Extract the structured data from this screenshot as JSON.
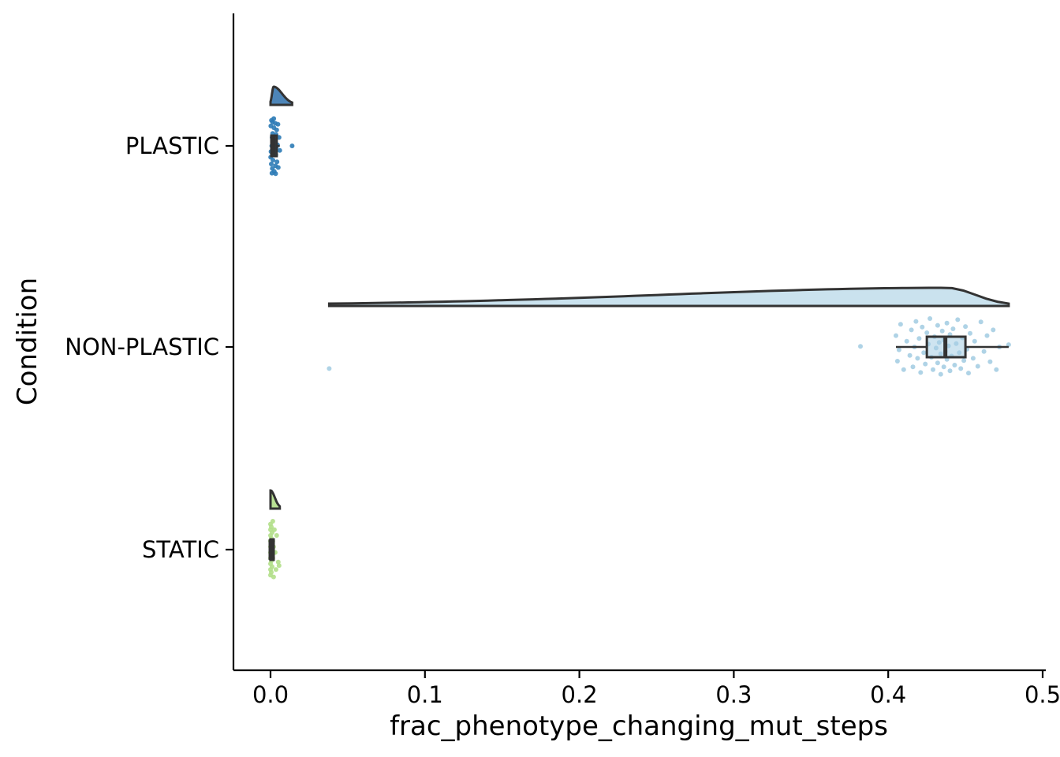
{
  "chart_data": {
    "type": "raincloud",
    "orientation": "horizontal",
    "xlabel": "frac_phenotype_changing_mut_steps",
    "ylabel": "Condition",
    "xlim": [
      -0.024,
      0.502
    ],
    "x_ticks": [
      0.0,
      0.1,
      0.2,
      0.3,
      0.4,
      0.5
    ],
    "x_tick_labels": [
      "0.0",
      "0.1",
      "0.2",
      "0.3",
      "0.4",
      "0.5"
    ],
    "categories": [
      "PLASTIC",
      "NON-PLASTIC",
      "STATIC"
    ],
    "grid": false,
    "legend": "none",
    "series": [
      {
        "category": "PLASTIC",
        "color": "#2c7bb6",
        "fill": "#3a78b0",
        "box": {
          "min": 0.0,
          "q1": 0.0005,
          "median": 0.002,
          "q3": 0.004,
          "max": 0.006
        },
        "violin": {
          "min": 0.0,
          "max": 0.014,
          "mode": 0.002
        },
        "points": [
          {
            "x": 0.0001,
            "j": 0.7
          },
          {
            "x": 0.0003,
            "j": 0.6
          },
          {
            "x": 0.0005,
            "j": 0.82
          },
          {
            "x": 0.0008,
            "j": 0.5
          },
          {
            "x": 0.001,
            "j": 0.35
          },
          {
            "x": 0.0012,
            "j": 0.9
          },
          {
            "x": 0.0014,
            "j": 0.28
          },
          {
            "x": 0.0016,
            "j": 0.75
          },
          {
            "x": 0.0018,
            "j": 0.45
          },
          {
            "x": 0.002,
            "j": 0.62
          },
          {
            "x": 0.0022,
            "j": 0.18
          },
          {
            "x": 0.0024,
            "j": 0.95
          },
          {
            "x": 0.0026,
            "j": 0.4
          },
          {
            "x": 0.0028,
            "j": 0.55
          },
          {
            "x": 0.003,
            "j": 0.1
          },
          {
            "x": 0.0032,
            "j": 0.85
          },
          {
            "x": 0.0034,
            "j": 0.66
          },
          {
            "x": 0.0036,
            "j": 0.3
          },
          {
            "x": 0.0038,
            "j": 0.52
          },
          {
            "x": 0.004,
            "j": 0.22
          },
          {
            "x": 0.0042,
            "j": 0.78
          },
          {
            "x": 0.0045,
            "j": 0.48
          },
          {
            "x": 0.0048,
            "j": 0.12
          },
          {
            "x": 0.005,
            "j": 0.88
          },
          {
            "x": 0.0055,
            "j": 0.35
          },
          {
            "x": 0.006,
            "j": 0.58
          },
          {
            "x": 0.0002,
            "j": 0.15
          },
          {
            "x": 0.0006,
            "j": 0.05
          },
          {
            "x": 0.0009,
            "j": 0.98
          },
          {
            "x": 0.0013,
            "j": 0.08
          },
          {
            "x": 0.0021,
            "j": 0.02
          },
          {
            "x": 0.0033,
            "j": 0.99
          },
          {
            "x": 0.014,
            "j": 0.5
          }
        ]
      },
      {
        "category": "NON-PLASTIC",
        "color": "#a6cee3",
        "fill": "#a6cee3",
        "box": {
          "min": 0.405,
          "q1": 0.425,
          "median": 0.437,
          "q3": 0.45,
          "max": 0.478
        },
        "violin": {
          "min": 0.038,
          "max": 0.478,
          "mode": 0.438
        },
        "points": [
          {
            "x": 0.038,
            "j": 0.88
          },
          {
            "x": 0.382,
            "j": 0.49
          },
          {
            "x": 0.405,
            "j": 0.3
          },
          {
            "x": 0.406,
            "j": 0.75
          },
          {
            "x": 0.407,
            "j": 0.55
          },
          {
            "x": 0.408,
            "j": 0.1
          },
          {
            "x": 0.41,
            "j": 0.9
          },
          {
            "x": 0.412,
            "j": 0.4
          },
          {
            "x": 0.414,
            "j": 0.65
          },
          {
            "x": 0.415,
            "j": 0.2
          },
          {
            "x": 0.416,
            "j": 0.85
          },
          {
            "x": 0.417,
            "j": 0.5
          },
          {
            "x": 0.418,
            "j": 0.05
          },
          {
            "x": 0.419,
            "j": 0.7
          },
          {
            "x": 0.42,
            "j": 0.35
          },
          {
            "x": 0.421,
            "j": 0.95
          },
          {
            "x": 0.422,
            "j": 0.15
          },
          {
            "x": 0.423,
            "j": 0.6
          },
          {
            "x": 0.424,
            "j": 0.8
          },
          {
            "x": 0.425,
            "j": 0.25
          },
          {
            "x": 0.426,
            "j": 0.45
          },
          {
            "x": 0.427,
            "j": 0.0
          },
          {
            "x": 0.428,
            "j": 0.68
          },
          {
            "x": 0.429,
            "j": 0.9
          },
          {
            "x": 0.43,
            "j": 0.32
          },
          {
            "x": 0.431,
            "j": 0.52
          },
          {
            "x": 0.432,
            "j": 0.12
          },
          {
            "x": 0.432,
            "j": 0.78
          },
          {
            "x": 0.433,
            "j": 0.42
          },
          {
            "x": 0.434,
            "j": 0.62
          },
          {
            "x": 0.434,
            "j": 0.98
          },
          {
            "x": 0.435,
            "j": 0.22
          },
          {
            "x": 0.436,
            "j": 0.85
          },
          {
            "x": 0.436,
            "j": 0.38
          },
          {
            "x": 0.437,
            "j": 0.58
          },
          {
            "x": 0.438,
            "j": 0.08
          },
          {
            "x": 0.438,
            "j": 0.72
          },
          {
            "x": 0.439,
            "j": 0.48
          },
          {
            "x": 0.44,
            "j": 0.92
          },
          {
            "x": 0.44,
            "j": 0.28
          },
          {
            "x": 0.441,
            "j": 0.66
          },
          {
            "x": 0.442,
            "j": 0.18
          },
          {
            "x": 0.443,
            "j": 0.82
          },
          {
            "x": 0.444,
            "j": 0.44
          },
          {
            "x": 0.445,
            "j": 0.02
          },
          {
            "x": 0.446,
            "j": 0.6
          },
          {
            "x": 0.447,
            "j": 0.88
          },
          {
            "x": 0.448,
            "j": 0.34
          },
          {
            "x": 0.449,
            "j": 0.74
          },
          {
            "x": 0.45,
            "j": 0.14
          },
          {
            "x": 0.451,
            "j": 0.54
          },
          {
            "x": 0.452,
            "j": 0.96
          },
          {
            "x": 0.453,
            "j": 0.26
          },
          {
            "x": 0.455,
            "j": 0.7
          },
          {
            "x": 0.456,
            "j": 0.4
          },
          {
            "x": 0.458,
            "j": 0.84
          },
          {
            "x": 0.46,
            "j": 0.06
          },
          {
            "x": 0.462,
            "j": 0.58
          },
          {
            "x": 0.464,
            "j": 0.3
          },
          {
            "x": 0.466,
            "j": 0.76
          },
          {
            "x": 0.468,
            "j": 0.2
          },
          {
            "x": 0.47,
            "j": 0.9
          },
          {
            "x": 0.472,
            "j": 0.5
          },
          {
            "x": 0.478,
            "j": 0.46
          }
        ]
      },
      {
        "category": "STATIC",
        "color": "#b2df8a",
        "fill": "#b2df8a",
        "box": {
          "min": 0.0,
          "q1": 0.0,
          "median": 0.0,
          "q3": 0.001,
          "max": 0.002
        },
        "violin": {
          "min": 0.0,
          "max": 0.006,
          "mode": 0.0
        },
        "points": [
          {
            "x": 0.0,
            "j": 0.05
          },
          {
            "x": 0.0,
            "j": 0.15
          },
          {
            "x": 0.0,
            "j": 0.25
          },
          {
            "x": 0.0,
            "j": 0.35
          },
          {
            "x": 0.0,
            "j": 0.45
          },
          {
            "x": 0.0,
            "j": 0.55
          },
          {
            "x": 0.0,
            "j": 0.65
          },
          {
            "x": 0.0,
            "j": 0.75
          },
          {
            "x": 0.0,
            "j": 0.85
          },
          {
            "x": 0.0,
            "j": 0.95
          },
          {
            "x": 0.0005,
            "j": 0.1
          },
          {
            "x": 0.0005,
            "j": 0.3
          },
          {
            "x": 0.0005,
            "j": 0.5
          },
          {
            "x": 0.0005,
            "j": 0.7
          },
          {
            "x": 0.0005,
            "j": 0.9
          },
          {
            "x": 0.001,
            "j": 0.2
          },
          {
            "x": 0.001,
            "j": 0.4
          },
          {
            "x": 0.001,
            "j": 0.6
          },
          {
            "x": 0.001,
            "j": 0.8
          },
          {
            "x": 0.0015,
            "j": 0.0
          },
          {
            "x": 0.0015,
            "j": 0.35
          },
          {
            "x": 0.0015,
            "j": 0.65
          },
          {
            "x": 0.002,
            "j": 0.98
          },
          {
            "x": 0.002,
            "j": 0.45
          },
          {
            "x": 0.0025,
            "j": 0.15
          },
          {
            "x": 0.003,
            "j": 0.55
          },
          {
            "x": 0.0035,
            "j": 0.85
          },
          {
            "x": 0.004,
            "j": 0.25
          },
          {
            "x": 0.005,
            "j": 0.72
          },
          {
            "x": 0.0055,
            "j": 0.78
          }
        ]
      }
    ]
  }
}
